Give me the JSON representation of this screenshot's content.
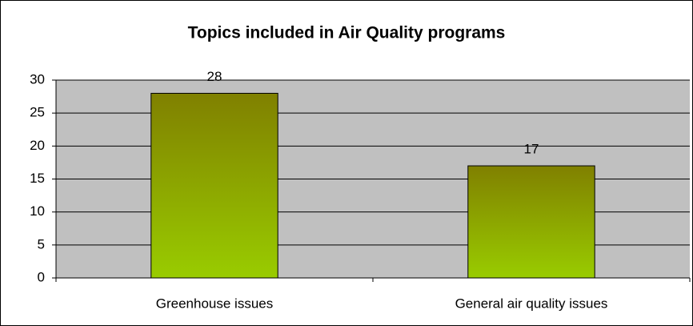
{
  "chart_data": {
    "type": "bar",
    "title": "Topics included in Air Quality programs",
    "categories": [
      "Greenhouse issues",
      "General air quality issues"
    ],
    "values": [
      28,
      17
    ],
    "ylim": [
      0,
      30
    ],
    "yticks": [
      0,
      5,
      10,
      15,
      20,
      25,
      30
    ],
    "grid": true
  }
}
